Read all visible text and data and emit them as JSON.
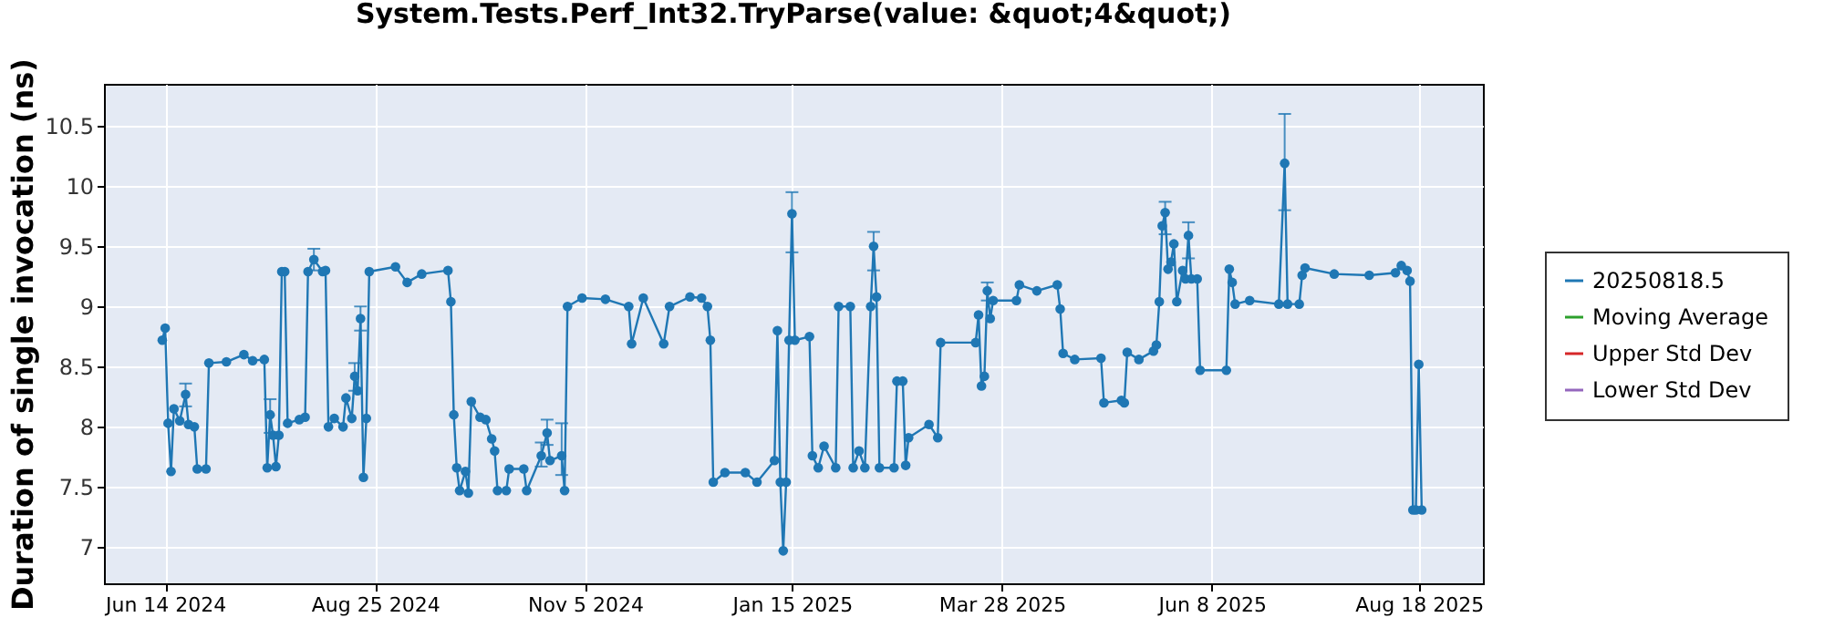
{
  "chart_data": {
    "type": "line",
    "title": "System.Tests.Perf_Int32.TryParse(value: &quot;4&quot;)",
    "ylabel": "Duration of single invocation (ns)",
    "x": [
      "2024-06-13",
      "2024-06-14",
      "2024-06-15",
      "2024-06-16",
      "2024-06-17",
      "2024-06-19",
      "2024-06-21",
      "2024-06-22",
      "2024-06-24",
      "2024-06-25",
      "2024-06-28",
      "2024-06-29",
      "2024-07-05",
      "2024-07-11",
      "2024-07-14",
      "2024-07-18",
      "2024-07-19",
      "2024-07-20",
      "2024-07-21",
      "2024-07-22",
      "2024-07-23",
      "2024-07-24",
      "2024-07-25",
      "2024-07-26",
      "2024-07-30",
      "2024-08-01",
      "2024-08-02",
      "2024-08-04",
      "2024-08-07",
      "2024-08-08",
      "2024-08-09",
      "2024-08-11",
      "2024-08-14",
      "2024-08-15",
      "2024-08-17",
      "2024-08-18",
      "2024-08-19",
      "2024-08-20",
      "2024-08-21",
      "2024-08-22",
      "2024-08-23",
      "2024-09-01",
      "2024-09-05",
      "2024-09-10",
      "2024-09-19",
      "2024-09-20",
      "2024-09-21",
      "2024-09-22",
      "2024-09-23",
      "2024-09-25",
      "2024-09-26",
      "2024-09-27",
      "2024-09-30",
      "2024-10-02",
      "2024-10-04",
      "2024-10-05",
      "2024-10-06",
      "2024-10-09",
      "2024-10-10",
      "2024-10-15",
      "2024-10-16",
      "2024-10-21",
      "2024-10-23",
      "2024-10-24",
      "2024-10-28",
      "2024-10-29",
      "2024-10-30",
      "2024-11-04",
      "2024-11-12",
      "2024-11-20",
      "2024-11-21",
      "2024-11-25",
      "2024-12-02",
      "2024-12-04",
      "2024-12-11",
      "2024-12-15",
      "2024-12-17",
      "2024-12-18",
      "2024-12-19",
      "2024-12-23",
      "2024-12-30",
      "2025-01-03",
      "2025-01-09",
      "2025-01-10",
      "2025-01-11",
      "2025-01-12",
      "2025-01-13",
      "2025-01-14",
      "2025-01-15",
      "2025-01-16",
      "2025-01-21",
      "2025-01-22",
      "2025-01-24",
      "2025-01-26",
      "2025-01-30",
      "2025-01-31",
      "2025-02-04",
      "2025-02-05",
      "2025-02-07",
      "2025-02-09",
      "2025-02-11",
      "2025-02-12",
      "2025-02-13",
      "2025-02-14",
      "2025-02-19",
      "2025-02-20",
      "2025-02-22",
      "2025-02-23",
      "2025-02-24",
      "2025-03-03",
      "2025-03-06",
      "2025-03-07",
      "2025-03-19",
      "2025-03-20",
      "2025-03-21",
      "2025-03-22",
      "2025-03-23",
      "2025-03-24",
      "2025-03-25",
      "2025-04-02",
      "2025-04-03",
      "2025-04-09",
      "2025-04-16",
      "2025-04-17",
      "2025-04-18",
      "2025-04-22",
      "2025-05-01",
      "2025-05-02",
      "2025-05-08",
      "2025-05-09",
      "2025-05-10",
      "2025-05-14",
      "2025-05-19",
      "2025-05-20",
      "2025-05-21",
      "2025-05-22",
      "2025-05-23",
      "2025-05-24",
      "2025-05-25",
      "2025-05-26",
      "2025-05-27",
      "2025-05-29",
      "2025-05-30",
      "2025-05-31",
      "2025-06-01",
      "2025-06-03",
      "2025-06-04",
      "2025-06-13",
      "2025-06-14",
      "2025-06-15",
      "2025-06-16",
      "2025-06-21",
      "2025-07-01",
      "2025-07-03",
      "2025-07-04",
      "2025-07-08",
      "2025-07-09",
      "2025-07-10",
      "2025-07-20",
      "2025-08-01",
      "2025-08-10",
      "2025-08-12",
      "2025-08-14",
      "2025-08-15",
      "2025-08-16",
      "2025-08-17",
      "2025-08-18",
      "2025-08-19"
    ],
    "series": [
      {
        "name": "20250818.5",
        "color": "#1f77b4",
        "values": [
          8.72,
          8.82,
          8.03,
          7.63,
          8.15,
          8.05,
          8.27,
          8.02,
          8.0,
          7.65,
          7.65,
          8.53,
          8.54,
          8.6,
          8.55,
          8.56,
          7.66,
          8.1,
          7.93,
          7.67,
          7.93,
          9.29,
          9.29,
          8.03,
          8.06,
          8.08,
          9.29,
          9.39,
          9.29,
          9.3,
          8.0,
          8.07,
          8.0,
          8.24,
          8.07,
          8.42,
          8.3,
          8.9,
          7.58,
          8.07,
          9.29,
          9.33,
          9.2,
          9.27,
          9.3,
          9.04,
          8.1,
          7.66,
          7.47,
          7.63,
          7.45,
          8.21,
          8.08,
          8.06,
          7.9,
          7.8,
          7.47,
          7.47,
          7.65,
          7.65,
          7.47,
          7.76,
          7.95,
          7.72,
          7.76,
          7.47,
          9.0,
          9.07,
          9.06,
          9.0,
          8.69,
          9.07,
          8.69,
          9.0,
          9.08,
          9.07,
          9.0,
          8.72,
          7.54,
          7.62,
          7.62,
          7.54,
          7.72,
          8.8,
          7.54,
          6.97,
          7.54,
          8.72,
          9.77,
          8.72,
          8.75,
          7.76,
          7.66,
          7.84,
          7.66,
          9.0,
          9.0,
          7.66,
          7.8,
          7.66,
          9.0,
          9.5,
          9.08,
          7.66,
          7.66,
          8.38,
          8.38,
          7.68,
          7.91,
          8.02,
          7.91,
          8.7,
          8.7,
          8.93,
          8.34,
          8.42,
          9.13,
          8.9,
          9.05,
          9.05,
          9.18,
          9.13,
          9.18,
          8.98,
          8.61,
          8.56,
          8.57,
          8.2,
          8.22,
          8.2,
          8.62,
          8.56,
          8.63,
          8.68,
          9.04,
          9.67,
          9.78,
          9.31,
          9.37,
          9.52,
          9.04,
          9.3,
          9.23,
          9.59,
          9.23,
          9.23,
          8.47,
          8.47,
          9.31,
          9.2,
          9.02,
          9.05,
          9.02,
          10.19,
          9.02,
          9.02,
          9.26,
          9.32,
          9.27,
          9.26,
          9.28,
          9.34,
          9.3,
          9.21,
          7.31,
          7.31,
          8.52,
          7.31
        ],
        "errors": [
          null,
          null,
          null,
          null,
          null,
          null,
          [
            8.17,
            8.36
          ],
          null,
          null,
          null,
          null,
          null,
          null,
          null,
          null,
          null,
          null,
          [
            7.95,
            8.23
          ],
          null,
          null,
          null,
          null,
          null,
          null,
          null,
          null,
          null,
          [
            9.3,
            9.48
          ],
          null,
          null,
          null,
          null,
          null,
          null,
          null,
          [
            8.3,
            8.53
          ],
          null,
          [
            8.8,
            9.0
          ],
          null,
          null,
          null,
          null,
          null,
          null,
          null,
          null,
          null,
          null,
          null,
          null,
          null,
          null,
          null,
          null,
          null,
          null,
          null,
          null,
          null,
          null,
          null,
          [
            7.67,
            7.87
          ],
          [
            7.85,
            8.06
          ],
          null,
          [
            7.6,
            8.03
          ],
          null,
          null,
          null,
          null,
          null,
          null,
          null,
          null,
          null,
          null,
          null,
          null,
          null,
          null,
          null,
          null,
          null,
          null,
          null,
          null,
          null,
          null,
          null,
          [
            9.45,
            9.95
          ],
          null,
          null,
          null,
          null,
          null,
          null,
          null,
          null,
          null,
          null,
          null,
          null,
          [
            9.3,
            9.62
          ],
          null,
          null,
          null,
          null,
          null,
          null,
          null,
          null,
          null,
          null,
          null,
          null,
          null,
          null,
          [
            9.05,
            9.2
          ],
          null,
          null,
          null,
          null,
          null,
          null,
          null,
          null,
          null,
          null,
          null,
          null,
          null,
          null,
          null,
          null,
          null,
          null,
          null,
          [
            9.6,
            9.87
          ],
          null,
          null,
          null,
          null,
          null,
          null,
          [
            9.4,
            9.7
          ],
          null,
          null,
          null,
          null,
          null,
          null,
          null,
          null,
          null,
          [
            9.8,
            10.6
          ],
          null,
          null,
          null,
          null,
          null,
          null,
          null,
          null,
          null,
          null,
          null,
          null,
          null,
          null
        ]
      },
      {
        "name": "Moving Average",
        "color": "#2ca02c",
        "values": [
          null,
          null,
          null,
          null,
          null,
          null,
          null,
          null,
          null,
          null,
          null,
          null,
          null,
          null,
          null,
          null,
          null,
          null,
          null,
          null,
          null,
          null,
          null,
          null,
          null,
          null,
          null,
          null,
          null,
          null,
          null,
          null,
          null,
          null,
          null,
          null,
          null,
          null,
          null,
          null,
          null,
          null,
          null,
          null,
          null,
          null,
          null,
          null,
          null,
          null,
          null,
          null,
          null,
          null,
          null,
          null,
          null,
          null,
          null,
          null,
          null,
          null,
          null,
          null,
          null,
          null,
          null,
          null,
          null,
          null,
          null,
          null,
          null,
          null,
          null,
          null,
          null,
          null,
          null,
          null,
          null,
          null,
          null,
          null,
          null,
          null,
          null,
          null,
          null,
          null,
          null,
          null,
          null,
          null,
          null,
          null,
          null,
          null,
          null,
          null,
          null,
          null,
          null,
          null,
          null,
          null,
          null,
          null,
          null,
          null,
          null,
          null,
          null,
          null,
          null,
          null,
          null,
          null,
          null,
          null,
          null,
          null,
          null,
          null,
          null,
          null,
          null,
          null,
          null,
          null,
          null,
          null,
          null,
          null,
          null,
          null,
          null,
          null,
          null,
          null,
          null,
          null,
          null,
          null,
          null,
          null,
          null,
          null,
          null,
          null,
          null,
          null,
          null,
          null,
          null,
          null,
          null,
          null,
          null,
          null,
          null,
          null,
          null,
          null,
          null,
          null,
          null,
          null
        ]
      },
      {
        "name": "Upper Std Dev",
        "color": "#d62728",
        "values": [
          null,
          null,
          null,
          null,
          null,
          null,
          null,
          null,
          null,
          null,
          null,
          null,
          null,
          null,
          null,
          null,
          null,
          null,
          null,
          null,
          null,
          null,
          null,
          null,
          null,
          null,
          null,
          null,
          null,
          null,
          null,
          null,
          null,
          null,
          null,
          null,
          null,
          null,
          null,
          null,
          null,
          null,
          null,
          null,
          null,
          null,
          null,
          null,
          null,
          null,
          null,
          null,
          null,
          null,
          null,
          null,
          null,
          null,
          null,
          null,
          null,
          null,
          null,
          null,
          null,
          null,
          null,
          null,
          null,
          null,
          null,
          null,
          null,
          null,
          null,
          null,
          null,
          null,
          null,
          null,
          null,
          null,
          null,
          null,
          null,
          null,
          null,
          null,
          null,
          null,
          null,
          null,
          null,
          null,
          null,
          null,
          null,
          null,
          null,
          null,
          null,
          null,
          null,
          null,
          null,
          null,
          null,
          null,
          null,
          null,
          null,
          null,
          null,
          null,
          null,
          null,
          null,
          null,
          null,
          null,
          null,
          null,
          null,
          null,
          null,
          null,
          null,
          null,
          null,
          null,
          null,
          null,
          null,
          null,
          null,
          null,
          null,
          null,
          null,
          null,
          null,
          null,
          null,
          null,
          null,
          null,
          null,
          null,
          null,
          null,
          null,
          null,
          null,
          null,
          null,
          null,
          null,
          null,
          null,
          null,
          null,
          null,
          null,
          null,
          null,
          null,
          null,
          null
        ]
      },
      {
        "name": "Lower Std Dev",
        "color": "#9467bd",
        "values": [
          null,
          null,
          null,
          null,
          null,
          null,
          null,
          null,
          null,
          null,
          null,
          null,
          null,
          null,
          null,
          null,
          null,
          null,
          null,
          null,
          null,
          null,
          null,
          null,
          null,
          null,
          null,
          null,
          null,
          null,
          null,
          null,
          null,
          null,
          null,
          null,
          null,
          null,
          null,
          null,
          null,
          null,
          null,
          null,
          null,
          null,
          null,
          null,
          null,
          null,
          null,
          null,
          null,
          null,
          null,
          null,
          null,
          null,
          null,
          null,
          null,
          null,
          null,
          null,
          null,
          null,
          null,
          null,
          null,
          null,
          null,
          null,
          null,
          null,
          null,
          null,
          null,
          null,
          null,
          null,
          null,
          null,
          null,
          null,
          null,
          null,
          null,
          null,
          null,
          null,
          null,
          null,
          null,
          null,
          null,
          null,
          null,
          null,
          null,
          null,
          null,
          null,
          null,
          null,
          null,
          null,
          null,
          null,
          null,
          null,
          null,
          null,
          null,
          null,
          null,
          null,
          null,
          null,
          null,
          null,
          null,
          null,
          null,
          null,
          null,
          null,
          null,
          null,
          null,
          null,
          null,
          null,
          null,
          null,
          null,
          null,
          null,
          null,
          null,
          null,
          null,
          null,
          null,
          null,
          null,
          null,
          null,
          null,
          null,
          null,
          null,
          null,
          null,
          null,
          null,
          null,
          null,
          null,
          null,
          null,
          null,
          null,
          null,
          null,
          null,
          null,
          null,
          null
        ]
      }
    ],
    "xlim": [
      "2024-05-24",
      "2025-09-09"
    ],
    "xticks": [
      {
        "value": "2024-06-14",
        "label": "Jun 14 2024"
      },
      {
        "value": "2024-08-25",
        "label": "Aug 25 2024"
      },
      {
        "value": "2024-11-05",
        "label": "Nov 5 2024"
      },
      {
        "value": "2025-01-15",
        "label": "Jan 15 2025"
      },
      {
        "value": "2025-03-28",
        "label": "Mar 28 2025"
      },
      {
        "value": "2025-06-08",
        "label": "Jun 8 2025"
      },
      {
        "value": "2025-08-18",
        "label": "Aug 18 2025"
      }
    ],
    "ylim": [
      6.7,
      10.85
    ],
    "yticks": [
      7,
      7.5,
      8,
      8.5,
      9,
      9.5,
      10,
      10.5
    ],
    "grid": true,
    "legend": "right",
    "marker": "circle",
    "line_style": "solid"
  }
}
